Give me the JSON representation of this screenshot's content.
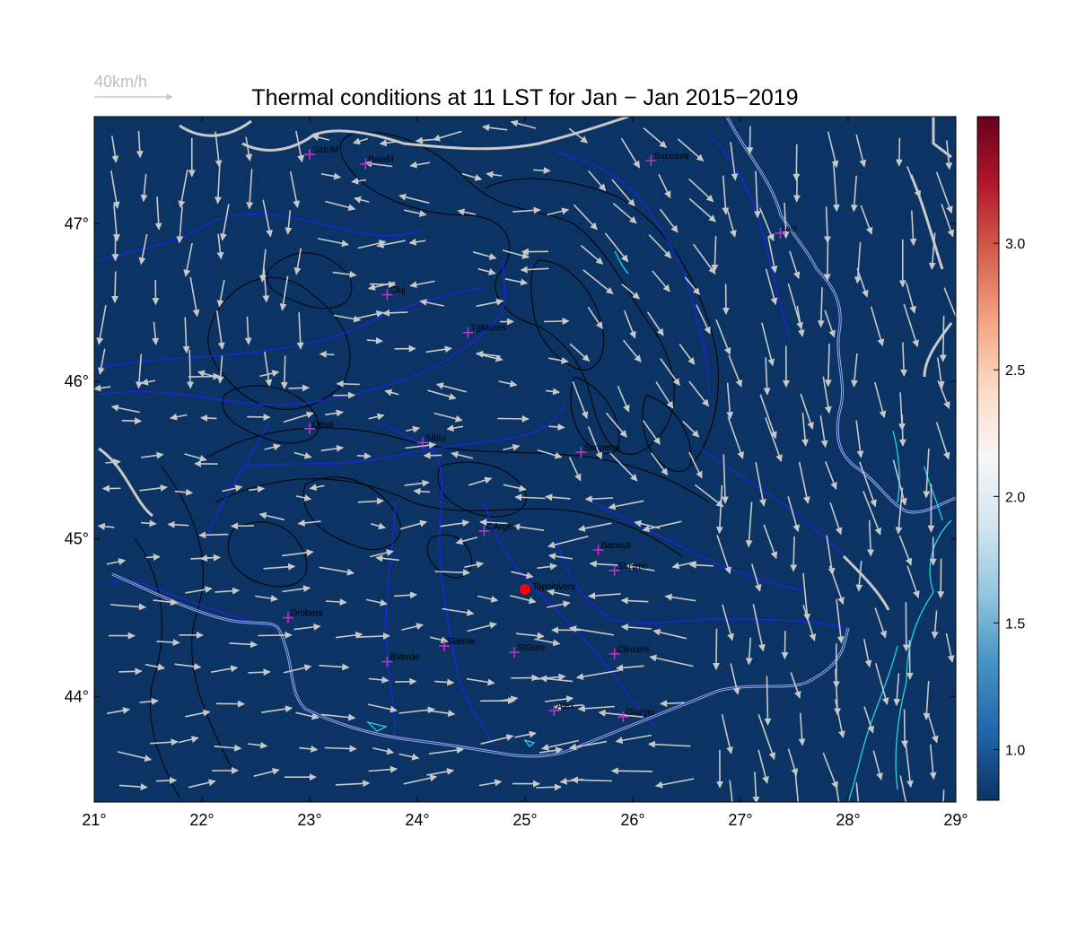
{
  "title": "Thermal conditions at 11 LST for Jan − Jan  2015−2019",
  "wind_legend": {
    "label": "40km/h"
  },
  "colors": {
    "background": "#0b3363",
    "river": "#1f24e6",
    "border": "#c8c8c8",
    "danube": "#9aa6f5",
    "lake": "#22d3e6",
    "contour": "#000000",
    "arrow": "#c8c8c8",
    "city_marker": "#cc33cc",
    "site": "#ff0000"
  },
  "map": {
    "lon_range": [
      21,
      29
    ],
    "lat_range": [
      43.33,
      47.68
    ],
    "x_ticks": [
      "21°",
      "22°",
      "23°",
      "24°",
      "25°",
      "26°",
      "27°",
      "28°",
      "29°"
    ],
    "x_tick_values": [
      21,
      22,
      23,
      24,
      25,
      26,
      27,
      28,
      29
    ],
    "y_ticks": [
      "44°",
      "45°",
      "46°",
      "47°"
    ],
    "y_tick_values": [
      44,
      45,
      46,
      47
    ]
  },
  "cities": [
    {
      "name": "SatuM",
      "lon": 23.0,
      "lat": 47.44
    },
    {
      "name": "BaiaM",
      "lon": 23.52,
      "lat": 47.38
    },
    {
      "name": "Suceava",
      "lon": 26.17,
      "lat": 47.4
    },
    {
      "name": "Iasi",
      "lon": 27.37,
      "lat": 46.94
    },
    {
      "name": "Cluj",
      "lon": 23.72,
      "lat": 46.55
    },
    {
      "name": "TgMures",
      "lon": 24.47,
      "lat": 46.31
    },
    {
      "name": "Deva",
      "lon": 23.0,
      "lat": 45.7
    },
    {
      "name": "Sibiu",
      "lon": 24.05,
      "lat": 45.61
    },
    {
      "name": "Sanpetru",
      "lon": 25.52,
      "lat": 45.55
    },
    {
      "name": "CArges",
      "lon": 24.62,
      "lat": 45.05
    },
    {
      "name": "Banesti",
      "lon": 25.68,
      "lat": 44.93
    },
    {
      "name": "Strejnic",
      "lon": 25.83,
      "lat": 44.8
    },
    {
      "name": "Drobeta",
      "lon": 22.8,
      "lat": 44.5
    },
    {
      "name": "Slatina",
      "lon": 24.25,
      "lat": 44.32
    },
    {
      "name": "StGum",
      "lon": 24.9,
      "lat": 44.28
    },
    {
      "name": "Clinceni",
      "lon": 25.83,
      "lat": 44.27
    },
    {
      "name": "BVerde",
      "lon": 23.72,
      "lat": 44.22
    },
    {
      "name": "Alex",
      "lon": 25.27,
      "lat": 43.91
    },
    {
      "name": "Giurgiu",
      "lon": 25.91,
      "lat": 43.87
    }
  ],
  "site": {
    "name": "Topoloveni",
    "lon": 25.0,
    "lat": 44.68
  },
  "colorbar": {
    "range": [
      0.8,
      3.5
    ],
    "ticks": [
      "1.0",
      "1.5",
      "2.0",
      "2.5",
      "3.0"
    ],
    "tick_values": [
      1.0,
      1.5,
      2.0,
      2.5,
      3.0
    ],
    "stops": [
      "#0b3363",
      "#2166ac",
      "#4393c3",
      "#92c5de",
      "#d1e5f0",
      "#f7f7f7",
      "#fddbc7",
      "#f4a582",
      "#d6604d",
      "#b2182b",
      "#67001f"
    ]
  }
}
